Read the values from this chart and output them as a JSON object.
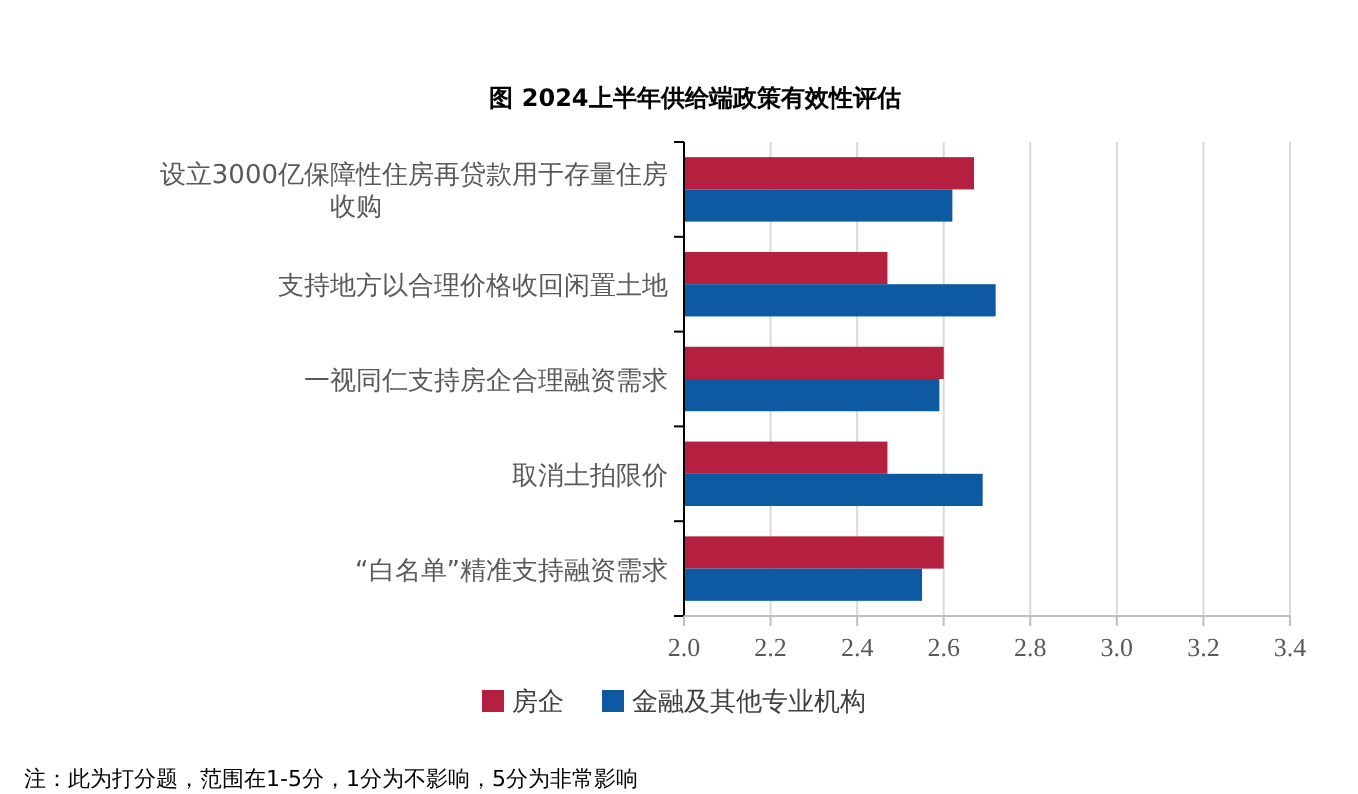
{
  "chart_data": {
    "type": "bar",
    "orientation": "horizontal",
    "title": "图  2024上半年供给端政策有效性评估",
    "categories": [
      "设立3000亿保障性住房再贷款用于存量住房收购",
      "支持地方以合理价格收回闲置土地",
      "一视同仁支持房企合理融资需求",
      "取消土拍限价",
      "“白名单”精准支持融资需求"
    ],
    "series": [
      {
        "name": "房企",
        "color": "#b51f40",
        "values": [
          2.67,
          2.47,
          2.6,
          2.47,
          2.6
        ]
      },
      {
        "name": "金融及其他专业机构",
        "color": "#0d5aa3",
        "values": [
          2.62,
          2.72,
          2.59,
          2.69,
          2.55
        ]
      }
    ],
    "xlim": [
      2.0,
      3.4
    ],
    "xticks": [
      {
        "value": 2.0,
        "label": "2.0"
      },
      {
        "value": 2.2,
        "label": "2.2"
      },
      {
        "value": 2.4,
        "label": "2.4"
      },
      {
        "value": 2.6,
        "label": "2.6"
      },
      {
        "value": 2.8,
        "label": "2.8"
      },
      {
        "value": 3.0,
        "label": "3.0"
      },
      {
        "value": 3.2,
        "label": "3.2"
      },
      {
        "value": 3.4,
        "label": "3.4"
      }
    ],
    "grid": "x",
    "legend": "bottom",
    "annotations": [
      "注：此为打分题，范围在1-5分，1分为不影响，5分为非常影响"
    ]
  }
}
